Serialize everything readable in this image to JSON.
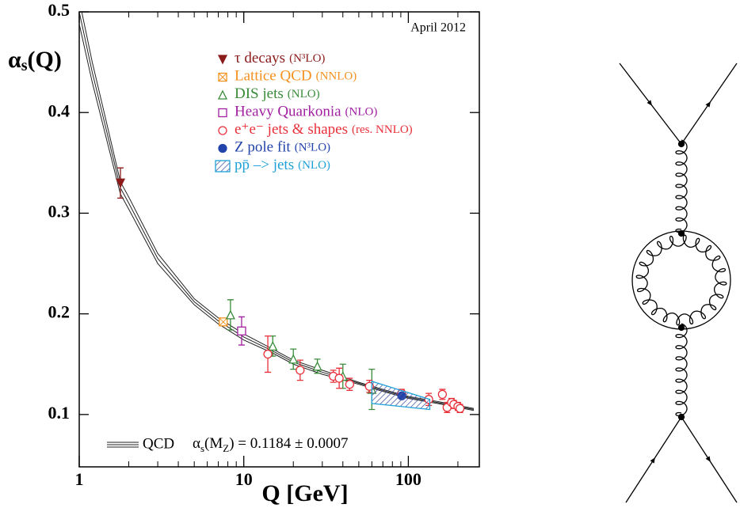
{
  "chart_data": {
    "type": "scatter",
    "annotation": "April 2012",
    "y_label": [
      "α",
      "s",
      "(Q)"
    ],
    "x_label": "Q [GeV]",
    "log_x": true,
    "xlim": [
      1,
      270
    ],
    "xticks": [
      1,
      10,
      100
    ],
    "xminorticks": [
      2,
      3,
      4,
      5,
      6,
      7,
      8,
      9,
      20,
      30,
      40,
      50,
      60,
      70,
      80,
      90,
      200
    ],
    "ylim": [
      0.048,
      0.5
    ],
    "yticks": [
      0.1,
      0.2,
      0.3,
      0.4,
      0.5
    ],
    "curve": {
      "name": "QCD",
      "color": "#222222",
      "x": [
        1,
        1.2,
        1.5,
        1.78,
        2,
        3,
        5,
        7,
        10,
        15,
        20,
        30,
        50,
        70,
        100,
        150,
        250
      ],
      "values": [
        0.5,
        0.44,
        0.375,
        0.325,
        0.31,
        0.255,
        0.212,
        0.193,
        0.177,
        0.163,
        0.152,
        0.142,
        0.131,
        0.124,
        0.117,
        0.112,
        0.105
      ],
      "upper": [
        0.512,
        0.45,
        0.383,
        0.331,
        0.316,
        0.26,
        0.215,
        0.196,
        0.18,
        0.165,
        0.154,
        0.144,
        0.132,
        0.125,
        0.118,
        0.113,
        0.106
      ],
      "lower": [
        0.488,
        0.43,
        0.367,
        0.319,
        0.304,
        0.25,
        0.209,
        0.19,
        0.174,
        0.161,
        0.15,
        0.14,
        0.13,
        0.123,
        0.116,
        0.111,
        0.104
      ]
    },
    "formula": [
      "α",
      "s",
      "(M",
      "Z",
      ") = 0.1184 ± 0.0007"
    ],
    "series": [
      {
        "name": "τ decays",
        "order": "(N³LO)",
        "color": "#8b1a1a",
        "marker": "triangle-down-filled",
        "x": [
          1.78
        ],
        "values": [
          0.33
        ],
        "errors": [
          0.015
        ]
      },
      {
        "name": "Lattice QCD",
        "order": "(NNLO)",
        "color": "#f39120",
        "marker": "square-x",
        "x": [
          7.5
        ],
        "values": [
          0.192
        ]
      },
      {
        "name": "DIS jets",
        "order": "(NLO)",
        "color": "#3a8c3a",
        "marker": "triangle",
        "x": [
          8.3,
          15,
          20,
          28,
          40,
          60
        ],
        "values": [
          0.199,
          0.168,
          0.155,
          0.148,
          0.138,
          0.125
        ],
        "errors": [
          0.015,
          0.01,
          0.01,
          0.007,
          0.012,
          0.02
        ]
      },
      {
        "name": "Heavy Quarkonia",
        "order": "(NLO)",
        "color": "#a020a0",
        "marker": "square",
        "x": [
          9.7
        ],
        "values": [
          0.183
        ],
        "errors": [
          0.014
        ]
      },
      {
        "name": "e⁺e⁻ jets & shapes",
        "order": "(res. NNLO)",
        "color": "#e8303a",
        "marker": "circle",
        "x": [
          14,
          22,
          35,
          38,
          44,
          58,
          91,
          133,
          161,
          172,
          183,
          189,
          200,
          206
        ],
        "values": [
          0.16,
          0.144,
          0.138,
          0.136,
          0.13,
          0.128,
          0.121,
          0.115,
          0.12,
          0.107,
          0.112,
          0.11,
          0.108,
          0.106
        ],
        "errors": [
          0.018,
          0.01,
          0.006,
          0.01,
          0.006,
          0.006,
          0.004,
          0.006,
          0.005,
          0.005,
          0.004,
          0.004,
          0.004,
          0.004
        ]
      },
      {
        "name": "Z pole fit",
        "order": "(N³LO)",
        "color": "#2244aa",
        "marker": "circle-filled",
        "x": [
          91.2
        ],
        "values": [
          0.1185
        ]
      },
      {
        "name": "pp̄ –> jets",
        "order": "(NLO)",
        "color": "#1fa0d8",
        "marker": "band",
        "x": [
          60,
          135
        ],
        "upper": [
          0.133,
          0.115
        ],
        "lower": [
          0.111,
          0.105
        ]
      }
    ]
  }
}
